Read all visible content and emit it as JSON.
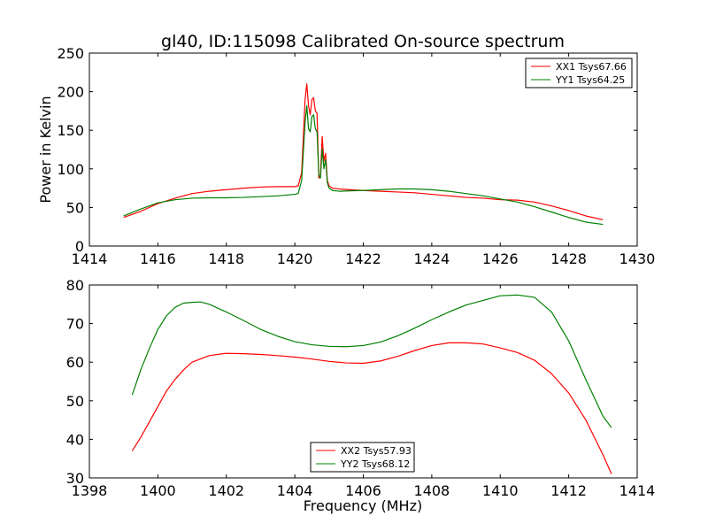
{
  "chart_data": [
    {
      "type": "line",
      "title": "gl40, ID:115098 Calibrated On-source spectrum",
      "xlabel": "",
      "ylabel": "Power in Kelvin",
      "xlim": [
        1414,
        1430
      ],
      "ylim": [
        0,
        250
      ],
      "xticks": [
        1414,
        1416,
        1418,
        1420,
        1422,
        1424,
        1426,
        1428,
        1430
      ],
      "yticks": [
        0,
        50,
        100,
        150,
        200,
        250
      ],
      "legend_position": "upper right",
      "series": [
        {
          "name": "XX1 Tsys67.66",
          "color": "#ff0000",
          "x": [
            1415.0,
            1415.5,
            1416.0,
            1416.5,
            1417.0,
            1417.5,
            1418.0,
            1418.5,
            1419.0,
            1419.5,
            1420.0,
            1420.1,
            1420.2,
            1420.3,
            1420.35,
            1420.4,
            1420.45,
            1420.5,
            1420.55,
            1420.6,
            1420.65,
            1420.7,
            1420.75,
            1420.8,
            1420.85,
            1420.9,
            1420.95,
            1421.0,
            1421.1,
            1421.3,
            1421.6,
            1422.0,
            1422.5,
            1423.0,
            1423.5,
            1424.0,
            1424.5,
            1425.0,
            1425.5,
            1426.0,
            1426.5,
            1427.0,
            1427.5,
            1428.0,
            1428.5,
            1429.0
          ],
          "y": [
            37,
            45,
            55,
            62,
            68,
            71,
            73,
            75,
            76.5,
            77,
            77,
            78,
            95,
            190,
            210,
            182,
            170,
            190,
            192,
            175,
            172,
            88,
            92,
            142,
            110,
            120,
            85,
            78,
            75,
            74,
            73,
            72,
            71,
            70,
            69,
            67,
            65,
            63,
            62,
            60,
            59.5,
            57,
            52,
            46,
            39,
            34
          ]
        },
        {
          "name": "YY1 Tsys64.25",
          "color": "#008000",
          "x": [
            1415.0,
            1415.5,
            1416.0,
            1416.5,
            1417.0,
            1417.5,
            1418.0,
            1418.5,
            1419.0,
            1419.5,
            1420.0,
            1420.1,
            1420.2,
            1420.3,
            1420.35,
            1420.4,
            1420.45,
            1420.5,
            1420.55,
            1420.6,
            1420.65,
            1420.7,
            1420.75,
            1420.8,
            1420.85,
            1420.9,
            1420.95,
            1421.0,
            1421.1,
            1421.3,
            1421.6,
            1422.0,
            1422.5,
            1423.0,
            1423.5,
            1424.0,
            1424.5,
            1425.0,
            1425.5,
            1426.0,
            1426.5,
            1427.0,
            1427.5,
            1428.0,
            1428.5,
            1429.0
          ],
          "y": [
            39,
            48,
            56,
            60,
            62,
            62.5,
            62.5,
            63,
            64,
            65,
            67,
            68,
            85,
            160,
            182,
            152,
            148,
            168,
            170,
            152,
            148,
            92,
            88,
            126,
            100,
            112,
            82,
            75,
            72,
            71,
            71.5,
            72,
            73,
            74,
            74,
            73,
            71,
            68,
            65,
            61,
            57,
            51,
            44,
            37,
            31,
            28
          ]
        }
      ]
    },
    {
      "type": "line",
      "title": "",
      "xlabel": "Frequency (MHz)",
      "ylabel": "",
      "xlim": [
        1398,
        1414
      ],
      "ylim": [
        30,
        80
      ],
      "xticks": [
        1398,
        1400,
        1402,
        1404,
        1406,
        1408,
        1410,
        1412,
        1414
      ],
      "yticks": [
        30,
        40,
        50,
        60,
        70,
        80
      ],
      "legend_position": "lower center",
      "series": [
        {
          "name": "XX2 Tsys57.93",
          "color": "#ff0000",
          "x": [
            1399.25,
            1399.5,
            1399.75,
            1400.0,
            1400.25,
            1400.5,
            1400.75,
            1401.0,
            1401.5,
            1402.0,
            1402.5,
            1403.0,
            1403.5,
            1404.0,
            1404.5,
            1405.0,
            1405.5,
            1406.0,
            1406.5,
            1407.0,
            1407.5,
            1408.0,
            1408.5,
            1409.0,
            1409.5,
            1410.0,
            1410.5,
            1411.0,
            1411.5,
            1412.0,
            1412.5,
            1413.0,
            1413.25
          ],
          "y": [
            37,
            40.5,
            44.5,
            48.5,
            52.5,
            55.5,
            58,
            60,
            61.7,
            62.3,
            62.2,
            62,
            61.7,
            61.3,
            60.8,
            60.2,
            59.8,
            59.7,
            60.3,
            61.5,
            63,
            64.3,
            65,
            65,
            64.7,
            63.7,
            62.5,
            60.5,
            57,
            52,
            45,
            36,
            31
          ]
        },
        {
          "name": "YY2 Tsys68.12",
          "color": "#008000",
          "x": [
            1399.25,
            1399.5,
            1399.75,
            1400.0,
            1400.25,
            1400.5,
            1400.75,
            1401.0,
            1401.25,
            1401.5,
            1402.0,
            1402.5,
            1403.0,
            1403.5,
            1404.0,
            1404.5,
            1405.0,
            1405.5,
            1406.0,
            1406.5,
            1407.0,
            1407.5,
            1408.0,
            1408.5,
            1409.0,
            1409.5,
            1410.0,
            1410.5,
            1411.0,
            1411.5,
            1412.0,
            1412.5,
            1413.0,
            1413.25
          ],
          "y": [
            51.5,
            58,
            63.5,
            68.5,
            72,
            74.2,
            75.3,
            75.5,
            75.6,
            75,
            73,
            70.8,
            68.5,
            66.7,
            65.3,
            64.5,
            64.1,
            64,
            64.3,
            65.2,
            66.8,
            68.8,
            71,
            73,
            74.8,
            76,
            77.2,
            77.4,
            76.8,
            73,
            65.5,
            55.5,
            46,
            43
          ]
        }
      ]
    }
  ]
}
